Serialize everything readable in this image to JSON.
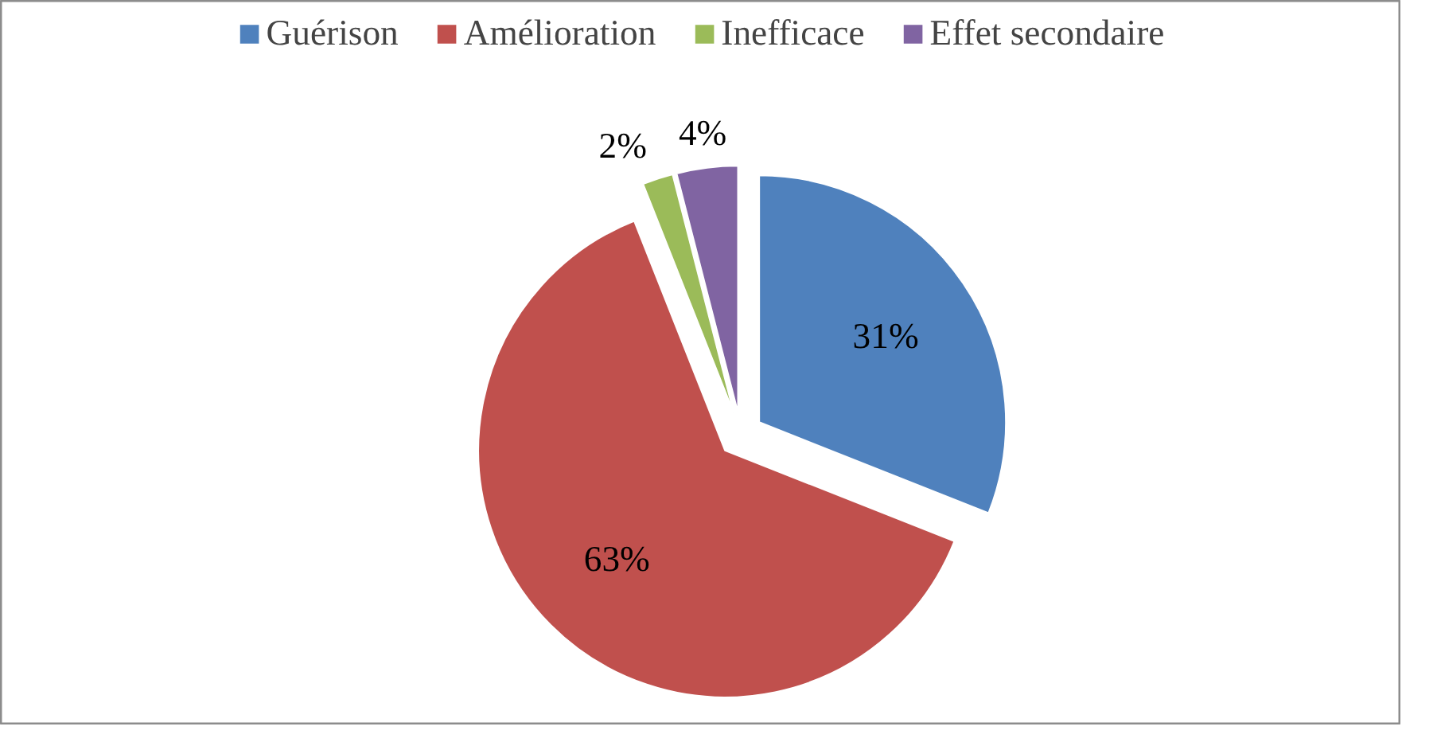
{
  "chart_data": {
    "type": "pie",
    "categories": [
      "Guérison",
      "Amélioration",
      "Inefficace",
      "Effet secondaire"
    ],
    "values": [
      31,
      63,
      2,
      4
    ],
    "colors": [
      "#4f81bd",
      "#c0504d",
      "#9bbb59",
      "#8064a2"
    ],
    "value_labels": [
      "31%",
      "63%",
      "2%",
      "4%"
    ],
    "legend": "top"
  }
}
